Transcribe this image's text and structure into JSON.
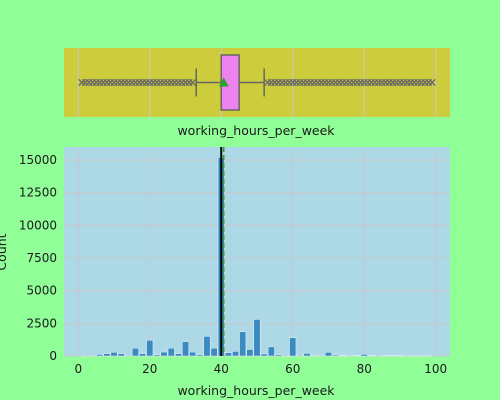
{
  "colors": {
    "background": "#90ff98",
    "boxplot_panel": "#cccc3d",
    "hist_panel": "#add8e6",
    "grid": "#c8c8c8",
    "box_fill": "#ee82ee",
    "box_edge": "#666666",
    "mean_marker": "#2ca02c",
    "bars": "#3b8bc2",
    "median_line": "#000000",
    "mean_line": "#2ca02c"
  },
  "chart_data": [
    {
      "type": "boxplot",
      "xlabel": "working_hours_per_week",
      "xlim": [
        -4,
        104
      ],
      "xticks": [
        0,
        20,
        40,
        60,
        80,
        100
      ],
      "grid": true,
      "box": {
        "whisker_low": 33,
        "q1": 40,
        "median": 40,
        "q3": 45,
        "whisker_high": 52,
        "mean": 40.7
      },
      "outlier_ranges": [
        [
          1,
          32
        ],
        [
          53,
          99
        ]
      ]
    },
    {
      "type": "bar",
      "xlabel": "working_hours_per_week",
      "ylabel": "Count",
      "xlim": [
        -4,
        104
      ],
      "ylim": [
        0,
        16000
      ],
      "xticks": [
        0,
        20,
        40,
        60,
        80,
        100
      ],
      "yticks": [
        0,
        2500,
        5000,
        7500,
        10000,
        12500,
        15000
      ],
      "grid": true,
      "median": 40,
      "mean": 40.7,
      "bins": [
        {
          "x": 2,
          "count": 60
        },
        {
          "x": 4,
          "count": 50
        },
        {
          "x": 6,
          "count": 120
        },
        {
          "x": 8,
          "count": 180
        },
        {
          "x": 10,
          "count": 280
        },
        {
          "x": 12,
          "count": 180
        },
        {
          "x": 14,
          "count": 60
        },
        {
          "x": 16,
          "count": 600
        },
        {
          "x": 18,
          "count": 180
        },
        {
          "x": 20,
          "count": 1200
        },
        {
          "x": 22,
          "count": 90
        },
        {
          "x": 24,
          "count": 300
        },
        {
          "x": 26,
          "count": 600
        },
        {
          "x": 28,
          "count": 180
        },
        {
          "x": 30,
          "count": 1100
        },
        {
          "x": 32,
          "count": 300
        },
        {
          "x": 34,
          "count": 100
        },
        {
          "x": 36,
          "count": 1500
        },
        {
          "x": 38,
          "count": 600
        },
        {
          "x": 40,
          "count": 15200
        },
        {
          "x": 42,
          "count": 250
        },
        {
          "x": 44,
          "count": 350
        },
        {
          "x": 46,
          "count": 1850
        },
        {
          "x": 48,
          "count": 500
        },
        {
          "x": 50,
          "count": 2800
        },
        {
          "x": 52,
          "count": 150
        },
        {
          "x": 54,
          "count": 700
        },
        {
          "x": 56,
          "count": 100
        },
        {
          "x": 58,
          "count": 60
        },
        {
          "x": 60,
          "count": 1400
        },
        {
          "x": 62,
          "count": 60
        },
        {
          "x": 64,
          "count": 200
        },
        {
          "x": 66,
          "count": 40
        },
        {
          "x": 68,
          "count": 50
        },
        {
          "x": 70,
          "count": 280
        },
        {
          "x": 72,
          "count": 80
        },
        {
          "x": 74,
          "count": 30
        },
        {
          "x": 76,
          "count": 50
        },
        {
          "x": 78,
          "count": 20
        },
        {
          "x": 80,
          "count": 130
        },
        {
          "x": 82,
          "count": 20
        },
        {
          "x": 84,
          "count": 60
        },
        {
          "x": 86,
          "count": 20
        },
        {
          "x": 88,
          "count": 20
        },
        {
          "x": 90,
          "count": 20
        },
        {
          "x": 92,
          "count": 10
        },
        {
          "x": 94,
          "count": 10
        },
        {
          "x": 96,
          "count": 10
        },
        {
          "x": 98,
          "count": 40
        }
      ]
    }
  ]
}
